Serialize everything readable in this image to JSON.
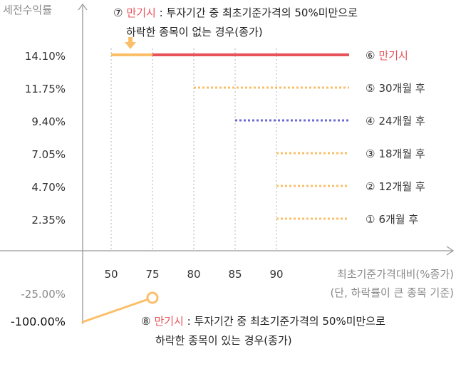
{
  "chart_data": {
    "type": "line",
    "y_axis_title": "세전수익률",
    "x_axis_title": "최초기준가격대비(%종가)",
    "x_axis_subtitle": "(단, 하락률이 큰 종목 기준)",
    "x_ticks": [
      50,
      75,
      80,
      85,
      90
    ],
    "y_ticks": [
      "14.10%",
      "11.75%",
      "9.40%",
      "7.05%",
      "4.70%",
      "2.35%"
    ],
    "series": [
      {
        "name": "① 6개월 후",
        "return_label": "2.35%",
        "barrier_from": 90,
        "style": "dotted",
        "color": "#fbbf6a"
      },
      {
        "name": "② 12개월 후",
        "return_label": "4.70%",
        "barrier_from": 90,
        "style": "dotted",
        "color": "#fbbf6a"
      },
      {
        "name": "③ 18개월 후",
        "return_label": "7.05%",
        "barrier_from": 90,
        "style": "dotted",
        "color": "#fbbf6a"
      },
      {
        "name": "④ 24개월 후",
        "return_label": "9.40%",
        "barrier_from": 85,
        "style": "dotted",
        "color": "#6b6bd6"
      },
      {
        "name": "⑤ 30개월 후",
        "return_label": "11.75%",
        "barrier_from": 80,
        "style": "dotted",
        "color": "#fbbf6a"
      },
      {
        "name": "⑥ 만기시",
        "return_label": "14.10%",
        "barrier_from": 75,
        "style": "solid",
        "color": "#e8525a",
        "highlight": true
      },
      {
        "name": "⑦ 만기시",
        "return_label": "14.10%",
        "barrier_from": 50,
        "barrier_to": 75,
        "style": "solid",
        "color": "#fbbf6a"
      }
    ],
    "loss_labels": [
      "-25.00%",
      "-100.00%"
    ],
    "loss_line": {
      "from_x": 0,
      "from_y": -100,
      "to_x": 75,
      "to_y": -25,
      "color": "#fbbf6a"
    },
    "annotations": {
      "top": {
        "marker": "⑦",
        "keyword": "만기시",
        "line1": " : 투자기간 중 최초기준가격의 50%미만으로",
        "line2": "하락한 종목이 없는 경우(종가)"
      },
      "bottom": {
        "marker": "⑧",
        "keyword": "만기시",
        "line1": " : 투자기간 중 최초기준가격의 50%미만으로",
        "line2": "하락한 종목이 있는 경우(종가)"
      }
    },
    "colors": {
      "axis": "#999999",
      "highlight_text": "#e8525a",
      "orange": "#fbbf6a",
      "purple": "#6b6bd6",
      "red": "#e8525a"
    }
  }
}
